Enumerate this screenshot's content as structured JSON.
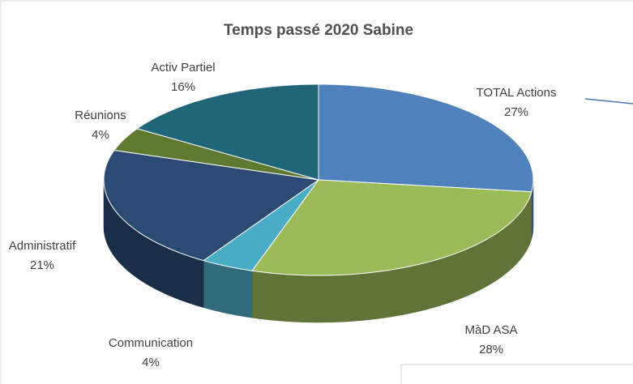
{
  "chart_data": {
    "type": "pie3d",
    "title": "Temps passé 2020 Sabine",
    "categories": [
      "TOTAL Actions",
      "MàD ASA",
      "Communication",
      "Administratif",
      "Réunions",
      "Activ Partiel"
    ],
    "values": [
      27,
      28,
      4,
      21,
      4,
      16
    ],
    "value_labels": [
      "27%",
      "28%",
      "4%",
      "21%",
      "4%",
      "16%"
    ],
    "colors": [
      "#4f81bd",
      "#9bbb59",
      "#4bacc6",
      "#2c4a74",
      "#5f7a30",
      "#216578"
    ]
  }
}
